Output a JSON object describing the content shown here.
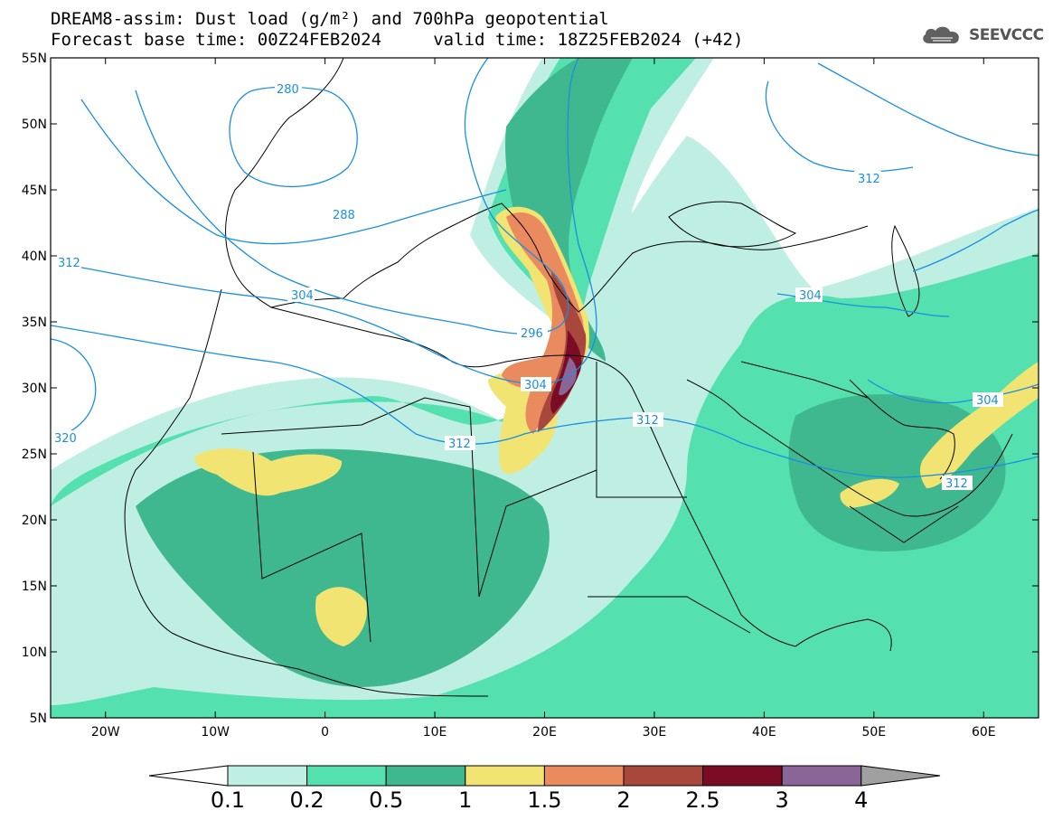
{
  "title": {
    "line1": "DREAM8-assim: Dust load (g/m²) and 700hPa geopotential",
    "line2": "Forecast base time: 00Z24FEB2024     valid time: 18Z25FEB2024 (+42)"
  },
  "logo": {
    "text": "SEEVCCC",
    "icon": "cloud-icon"
  },
  "map": {
    "lon_range": [
      -25,
      65
    ],
    "lat_range": [
      5,
      55
    ],
    "lat_ticks": [
      "55N",
      "50N",
      "45N",
      "40N",
      "35N",
      "30N",
      "25N",
      "20N",
      "15N",
      "10N",
      "5N"
    ],
    "lon_ticks": [
      "20W",
      "10W",
      "0",
      "10E",
      "20E",
      "30E",
      "40E",
      "50E",
      "60E"
    ],
    "contour_labels": [
      "280",
      "288",
      "296",
      "304",
      "304",
      "304",
      "312",
      "312",
      "312",
      "312",
      "312",
      "320"
    ]
  },
  "colorbar": {
    "levels": [
      "0.1",
      "0.2",
      "0.5",
      "1",
      "1.5",
      "2",
      "2.5",
      "3",
      "4"
    ],
    "colors": [
      "#ffffff",
      "#bfeee3",
      "#55e0b0",
      "#3fb890",
      "#f2e472",
      "#e98a5f",
      "#a8483d",
      "#7a0c25",
      "#8a6698",
      "#a0a0a0"
    ]
  },
  "colors": {
    "contour": "#1a8fe0",
    "coast": "#000000",
    "dust_light": "#bfeee3",
    "dust_mid": "#55e0b0",
    "dust_dark": "#3fb890",
    "dust_yellow": "#f2e472",
    "dust_orange": "#e98a5f",
    "dust_brown": "#a8483d",
    "dust_maroon": "#7a0c25",
    "dust_purple": "#8a6698"
  }
}
